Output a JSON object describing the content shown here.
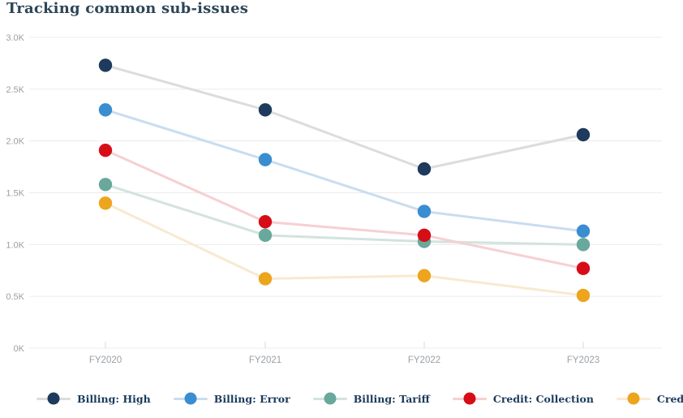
{
  "title": "Tracking common sub-issues",
  "chart_data": {
    "type": "line",
    "categories": [
      "FY2020",
      "FY2021",
      "FY2022",
      "FY2023"
    ],
    "series": [
      {
        "name": "Billing: High",
        "values": [
          2730,
          2300,
          1730,
          2060
        ],
        "color": "#1e3a5c",
        "line_color": "#dcdcdc"
      },
      {
        "name": "Billing: Error",
        "values": [
          2300,
          1820,
          1320,
          1130
        ],
        "color": "#3a8dd0",
        "line_color": "#c9ddf0"
      },
      {
        "name": "Billing: Tariff",
        "values": [
          1580,
          1090,
          1030,
          1000
        ],
        "color": "#69a89c",
        "line_color": "#d3e3de"
      },
      {
        "name": "Credit: Collection",
        "values": [
          1910,
          1220,
          1090,
          770
        ],
        "color": "#d60d17",
        "line_color": "#f6d0d2"
      },
      {
        "name": "Credit: Disconnection",
        "values": [
          1400,
          670,
          700,
          510
        ],
        "color": "#eca51c",
        "line_color": "#f8ead0"
      }
    ],
    "y_ticks": [
      "0K",
      "0.5K",
      "1.0K",
      "1.5K",
      "2.0K",
      "2.5K",
      "3.0K"
    ],
    "y_tick_values": [
      0,
      500,
      1000,
      1500,
      2000,
      2500,
      3000
    ],
    "ylim": [
      0,
      3000
    ],
    "grid": true,
    "legend_position": "bottom"
  },
  "colors": {
    "title_text": "#2d4656",
    "axis_label": "#9aa0a6",
    "gridline": "#ececec",
    "tick": "#d9d9d9",
    "legend_text": "#1a3a5c",
    "background": "#ffffff"
  }
}
